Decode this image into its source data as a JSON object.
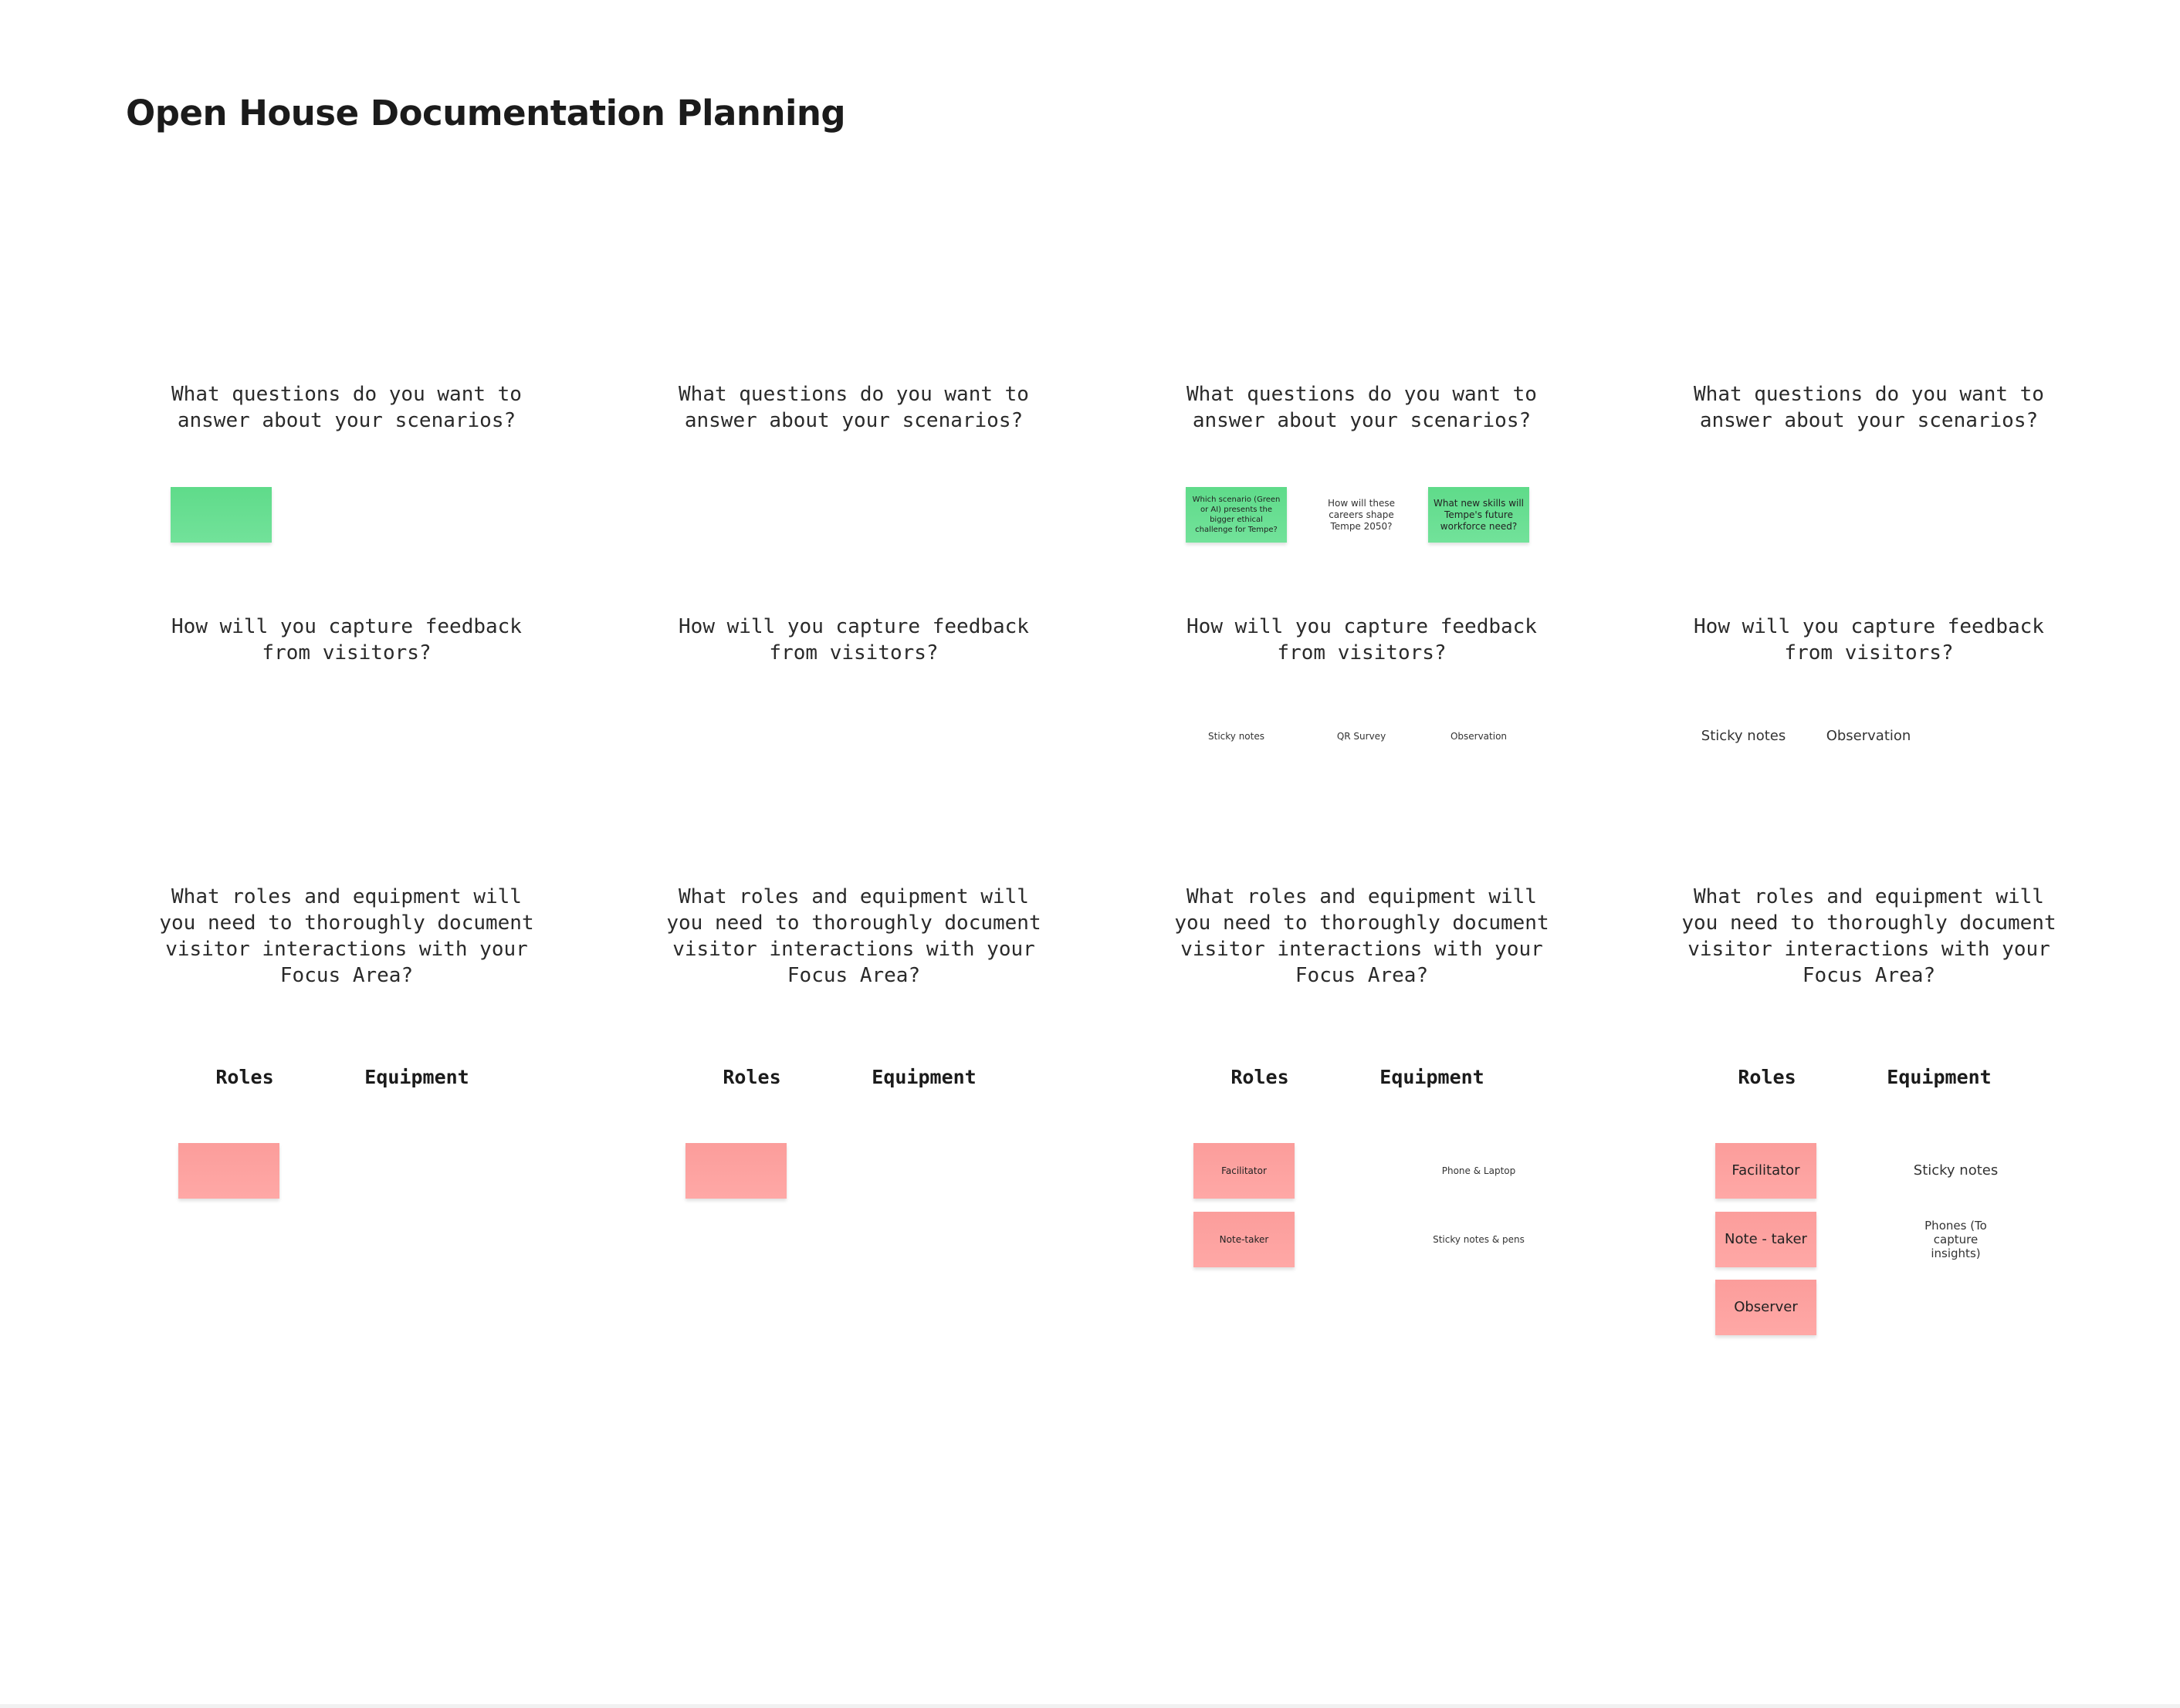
{
  "board": {
    "title": "Open House Documentation Planning"
  },
  "columns": [
    {
      "q_questions": "What questions do you want to\nanswer about your scenarios?",
      "q_feedback": "How will you capture feedback\nfrom visitors?",
      "q_roles": "What roles and equipment will\nyou need to thoroughly document\nvisitor interactions with your\nFocus Area?",
      "roles_heading": "Roles",
      "equipment_heading": "Equipment"
    },
    {
      "q_questions": "What questions do you want to\nanswer about your scenarios?",
      "q_feedback": "How will you capture feedback\nfrom visitors?",
      "q_roles": "What roles and equipment will\nyou need to thoroughly document\nvisitor interactions with your\nFocus Area?",
      "roles_heading": "Roles",
      "equipment_heading": "Equipment"
    },
    {
      "q_questions": "What questions do you want to\nanswer about your scenarios?",
      "q_feedback": "How will you capture feedback\nfrom visitors?",
      "q_roles": "What roles and equipment will\nyou need to thoroughly document\nvisitor interactions with your\nFocus Area?",
      "roles_heading": "Roles",
      "equipment_heading": "Equipment",
      "question_notes": [
        "Which scenario (Green or AI) presents the bigger ethical challenge for Tempe?",
        "How will these careers shape Tempe 2050?",
        "What new skills will Tempe's future workforce need?"
      ],
      "feedback_notes": [
        "Sticky notes",
        "QR Survey",
        "Observation"
      ],
      "roles": [
        "Facilitator",
        "Note-taker"
      ],
      "equipment": [
        "Phone & Laptop",
        "Sticky notes & pens"
      ]
    },
    {
      "q_questions": "What questions do you want to\nanswer about your scenarios?",
      "q_feedback": "How will you capture feedback\nfrom visitors?",
      "q_roles": "What roles and equipment will\nyou need to thoroughly document\nvisitor interactions with your\nFocus Area?",
      "roles_heading": "Roles",
      "equipment_heading": "Equipment",
      "feedback_notes": [
        "Sticky notes",
        "Observation"
      ],
      "roles": [
        "Facilitator",
        "Note - taker",
        "Observer"
      ],
      "equipment": [
        "Sticky notes",
        "Phones (To capture insights)"
      ]
    }
  ]
}
